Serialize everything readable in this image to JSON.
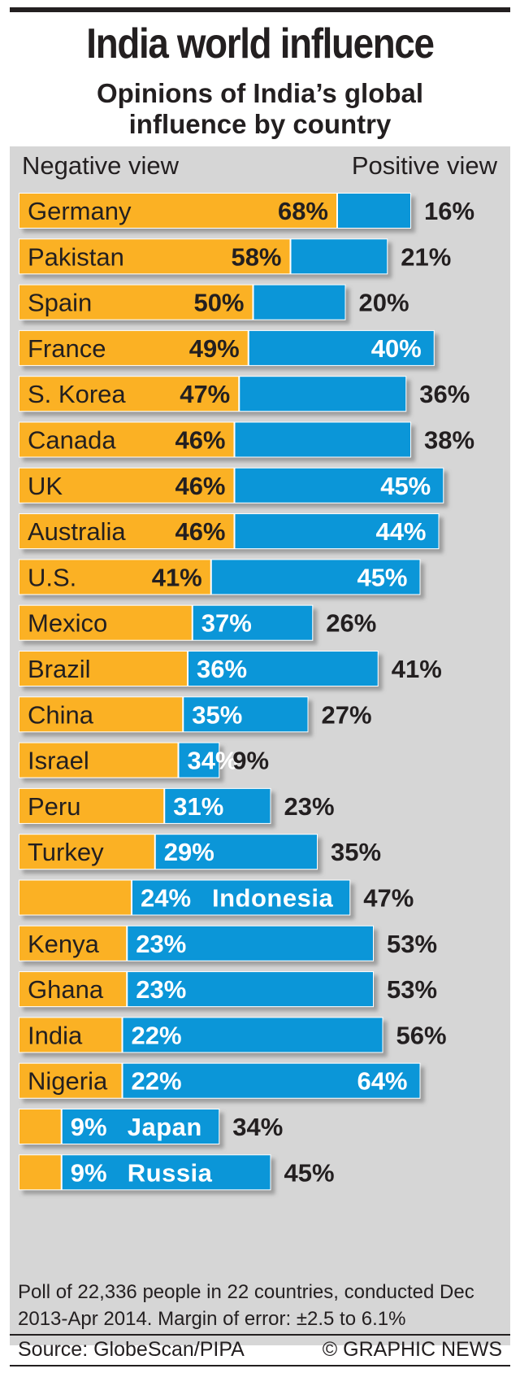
{
  "title": "India world influence",
  "subtitle": "Opinions of India’s global influence by country",
  "colors": {
    "negative": "#fbb124",
    "positive": "#0b96d8",
    "panel": "#d6d6d6",
    "text": "#231f20"
  },
  "footnote": "Poll of 22,336 people in 22 countries, conducted Dec 2013-Apr 2014. Margin of error: ±2.5 to 6.1%",
  "source": "Source: GlobeScan/PIPA",
  "credit": "© GRAPHIC NEWS",
  "chart_data": {
    "type": "bar",
    "orientation": "horizontal",
    "stacked": true,
    "legend": {
      "negative": "Negative view",
      "positive": "Positive view"
    },
    "categories": [
      "Germany",
      "Pakistan",
      "Spain",
      "France",
      "S. Korea",
      "Canada",
      "UK",
      "Australia",
      "U.S.",
      "Mexico",
      "Brazil",
      "China",
      "Israel",
      "Peru",
      "Turkey",
      "Indonesia",
      "Kenya",
      "Ghana",
      "India",
      "Nigeria",
      "Japan",
      "Russia"
    ],
    "series": [
      {
        "name": "Negative view",
        "values": [
          68,
          58,
          50,
          49,
          47,
          46,
          46,
          46,
          41,
          37,
          36,
          35,
          34,
          31,
          29,
          24,
          23,
          23,
          22,
          22,
          9,
          9
        ]
      },
      {
        "name": "Positive view",
        "values": [
          16,
          21,
          20,
          40,
          36,
          38,
          45,
          44,
          45,
          26,
          41,
          27,
          9,
          23,
          35,
          47,
          53,
          53,
          56,
          64,
          34,
          45
        ]
      }
    ],
    "labels": {
      "negative": [
        "68%",
        "58%",
        "50%",
        "49%",
        "47%",
        "46%",
        "46%",
        "46%",
        "41%",
        "37%",
        "36%",
        "35%",
        "34%",
        "31%",
        "29%",
        "24%",
        "23%",
        "23%",
        "22%",
        "22%",
        "9%",
        "9%"
      ],
      "positive": [
        "16%",
        "21%",
        "20%",
        "40%",
        "36%",
        "38%",
        "45%",
        "44%",
        "45%",
        "26%",
        "41%",
        "27%",
        "9%",
        "23%",
        "35%",
        "47%",
        "53%",
        "53%",
        "56%",
        "64%",
        "34%",
        "45%"
      ]
    }
  }
}
